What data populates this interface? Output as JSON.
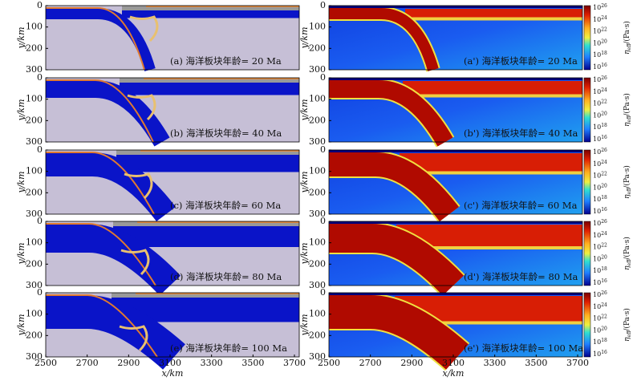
{
  "panels_left": [
    {
      "label": "(a) 海洋板块年龄= 20 Ma"
    },
    {
      "label": "(b) 海洋板块年龄= 40 Ma"
    },
    {
      "label": "(c) 海洋板块年龄= 60 Ma"
    },
    {
      "label": "(d) 海洋板块年龄= 80 Ma"
    },
    {
      "label": "(e) 海洋板块年龄= 100 Ma"
    }
  ],
  "panels_right": [
    {
      "label": "(a') 海洋板块年龄= 20 Ma"
    },
    {
      "label": "(b') 海洋板块年龄= 40 Ma"
    },
    {
      "label": "(c') 海洋板块年龄= 60 Ma"
    },
    {
      "label": "(d') 海洋板块年龄= 80 Ma"
    },
    {
      "label": "(e') 海洋板块年龄= 100 Ma"
    }
  ],
  "y_axis": {
    "label": "y/km",
    "ticks": [
      "0",
      "100",
      "200",
      "300"
    ]
  },
  "x_axis": {
    "label": "x/km",
    "ticks": [
      "2500",
      "2700",
      "2900",
      "3100",
      "3300",
      "3500",
      "3700"
    ]
  },
  "colorbar": {
    "symbol": "η",
    "subscript": "eff",
    "unit": "/(Pa·s)",
    "base": "10",
    "exponents": [
      "26",
      "24",
      "22",
      "20",
      "18",
      "16"
    ]
  }
}
